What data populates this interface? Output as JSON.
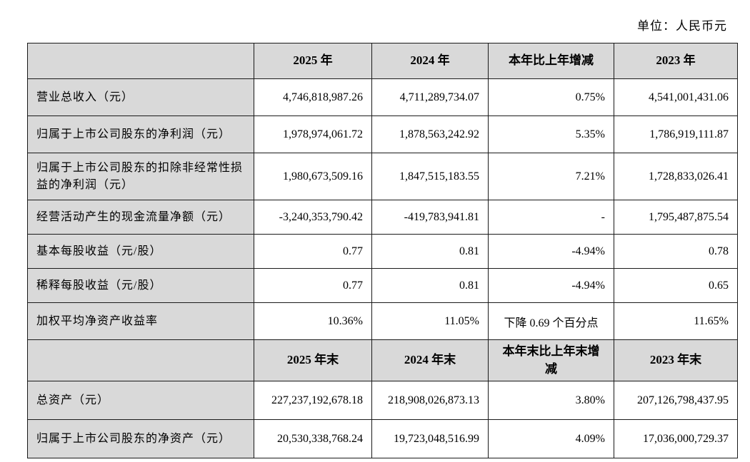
{
  "page": {
    "unit_note": "单位：人民币元"
  },
  "table": {
    "columns_row1": [
      "",
      "2025 年",
      "2024 年",
      "本年比上年增减",
      "2023 年"
    ],
    "rows1": [
      {
        "label": "营业总收入（元）",
        "values": [
          "4,746,818,987.26",
          "4,711,289,734.07",
          "0.75%",
          "4,541,001,431.06"
        ]
      },
      {
        "label": "归属于上市公司股东的净利润（元）",
        "values": [
          "1,978,974,061.72",
          "1,878,563,242.92",
          "5.35%",
          "1,786,919,111.87"
        ]
      },
      {
        "label": "归属于上市公司股东的扣除非经常性损益的净利润（元）",
        "values": [
          "1,980,673,509.16",
          "1,847,515,183.55",
          "7.21%",
          "1,728,833,026.41"
        ]
      },
      {
        "label": "经营活动产生的现金流量净额（元）",
        "values": [
          "-3,240,353,790.42",
          "-419,783,941.81",
          "-",
          "1,795,487,875.54"
        ]
      },
      {
        "label": "基本每股收益（元/股）",
        "values": [
          "0.77",
          "0.81",
          "-4.94%",
          "0.78"
        ]
      },
      {
        "label": "稀释每股收益（元/股）",
        "values": [
          "0.77",
          "0.81",
          "-4.94%",
          "0.65"
        ]
      },
      {
        "label": "加权平均净资产收益率",
        "values": [
          "10.36%",
          "11.05%",
          "下降 0.69 个百分点",
          "11.65%"
        ]
      }
    ],
    "columns_row2": [
      "",
      "2025 年末",
      "2024 年末",
      "本年末比上年末增减",
      "2023 年末"
    ],
    "rows2": [
      {
        "label": "总资产（元）",
        "values": [
          "227,237,192,678.18",
          "218,908,026,873.13",
          "3.80%",
          "207,126,798,437.95"
        ]
      },
      {
        "label": "归属于上市公司股东的净资产（元）",
        "values": [
          "20,530,338,768.24",
          "19,723,048,516.99",
          "4.09%",
          "17,036,000,729.37"
        ]
      }
    ],
    "colors": {
      "header_bg": "#d9d9d9",
      "label_bg": "#d9d9d9",
      "border": "#1a1a1a",
      "text": "#000000"
    }
  }
}
